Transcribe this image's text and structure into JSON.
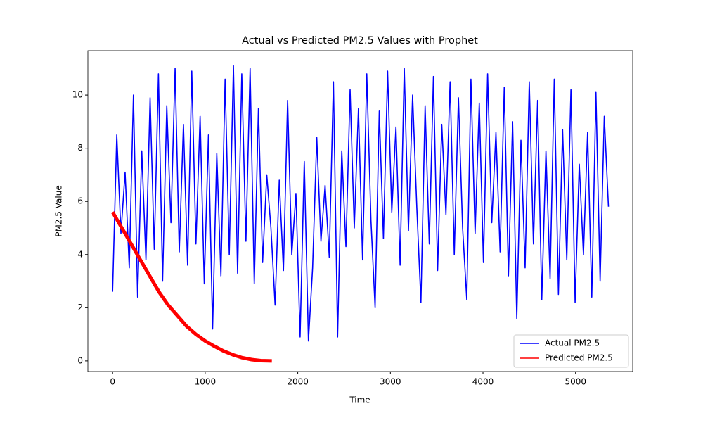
{
  "chart_data": {
    "type": "line",
    "title": "Actual vs Predicted PM2.5 Values with Prophet",
    "xlabel": "Time",
    "ylabel": "PM2.5 Value",
    "xlim": [
      -267,
      5617
    ],
    "ylim": [
      -0.4,
      11.67
    ],
    "xticks": [
      0,
      1000,
      2000,
      3000,
      4000,
      5000
    ],
    "yticks": [
      0,
      2,
      4,
      6,
      8,
      10
    ],
    "grid": false,
    "legend": "lower right",
    "series": [
      {
        "name": "Actual PM2.5",
        "color": "#0000ff",
        "x": [
          0,
          45,
          90,
          135,
          180,
          225,
          270,
          315,
          360,
          405,
          450,
          495,
          540,
          585,
          630,
          675,
          720,
          765,
          810,
          855,
          900,
          945,
          990,
          1035,
          1080,
          1125,
          1170,
          1215,
          1260,
          1305,
          1350,
          1395,
          1440,
          1485,
          1530,
          1575,
          1620,
          1665,
          1710,
          1755,
          1800,
          1845,
          1890,
          1935,
          1980,
          2025,
          2070,
          2115,
          2160,
          2205,
          2250,
          2295,
          2340,
          2385,
          2430,
          2475,
          2520,
          2565,
          2610,
          2655,
          2700,
          2745,
          2790,
          2835,
          2880,
          2925,
          2970,
          3015,
          3060,
          3105,
          3150,
          3195,
          3240,
          3285,
          3330,
          3375,
          3420,
          3465,
          3510,
          3555,
          3600,
          3645,
          3690,
          3735,
          3780,
          3825,
          3870,
          3915,
          3960,
          4005,
          4050,
          4095,
          4140,
          4185,
          4230,
          4275,
          4320,
          4365,
          4410,
          4455,
          4500,
          4545,
          4590,
          4635,
          4680,
          4725,
          4770,
          4815,
          4860,
          4905,
          4950,
          4995,
          5040,
          5085,
          5130,
          5175,
          5220,
          5265,
          5310,
          5355
        ],
        "values": [
          2.6,
          8.5,
          4.8,
          7.1,
          3.5,
          10.0,
          2.4,
          7.9,
          3.8,
          9.9,
          4.2,
          10.8,
          3.0,
          9.6,
          5.2,
          11.0,
          4.1,
          8.9,
          3.6,
          10.9,
          4.4,
          9.2,
          2.9,
          8.5,
          1.2,
          7.8,
          3.2,
          10.6,
          4.0,
          11.1,
          3.3,
          10.8,
          4.5,
          11.0,
          2.9,
          9.5,
          3.7,
          7.0,
          5.0,
          2.1,
          6.8,
          3.4,
          9.8,
          4.0,
          6.3,
          0.9,
          7.5,
          0.75,
          3.5,
          8.4,
          4.5,
          6.6,
          3.9,
          10.5,
          0.9,
          7.9,
          4.3,
          10.2,
          5.0,
          9.5,
          3.8,
          10.8,
          5.3,
          2.0,
          9.4,
          4.6,
          10.9,
          5.6,
          8.8,
          3.6,
          11.0,
          4.9,
          10.0,
          5.8,
          2.2,
          9.6,
          4.4,
          10.7,
          3.4,
          8.9,
          5.5,
          10.5,
          4.0,
          9.9,
          5.0,
          2.3,
          10.6,
          4.8,
          9.7,
          3.7,
          10.8,
          5.2,
          8.6,
          4.1,
          10.3,
          3.2,
          9.0,
          1.6,
          8.3,
          3.5,
          10.5,
          4.4,
          9.8,
          2.3,
          7.9,
          3.1,
          10.6,
          2.5,
          8.7,
          3.8,
          10.2,
          2.2,
          7.4,
          4.0,
          8.6,
          2.4,
          10.1,
          3.0,
          9.2,
          5.8
        ]
      },
      {
        "name": "Predicted PM2.5",
        "color": "#ff0000",
        "x": [
          0,
          100,
          200,
          300,
          400,
          500,
          600,
          700,
          800,
          900,
          1000,
          1100,
          1200,
          1300,
          1400,
          1500,
          1600,
          1720
        ],
        "values": [
          5.6,
          5.0,
          4.4,
          3.8,
          3.2,
          2.6,
          2.1,
          1.7,
          1.3,
          1.0,
          0.75,
          0.55,
          0.37,
          0.23,
          0.12,
          0.05,
          0.01,
          0
        ]
      }
    ]
  }
}
